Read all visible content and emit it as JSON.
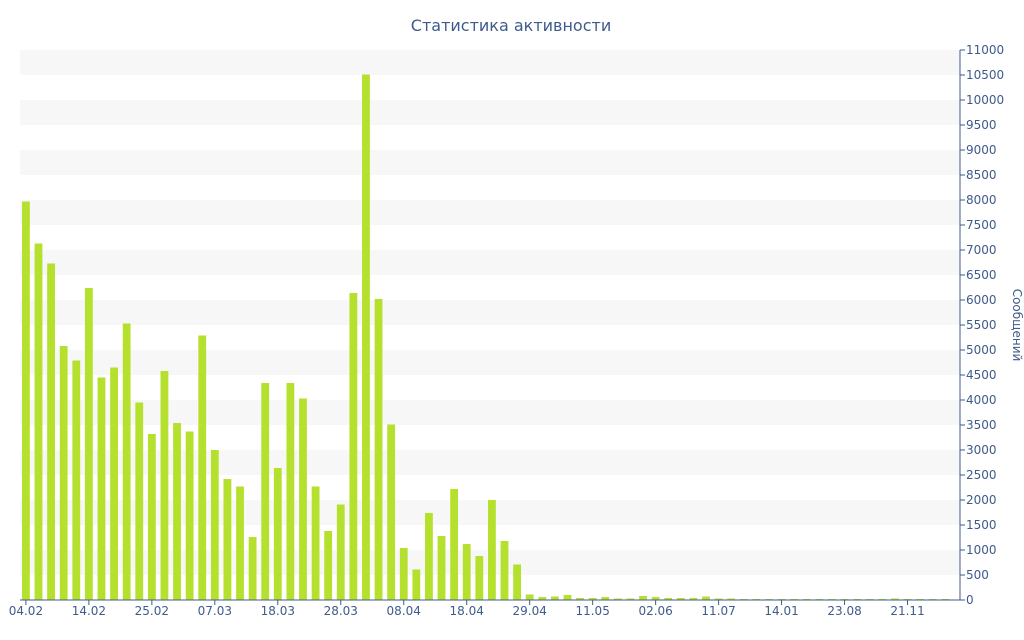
{
  "chart_data": {
    "type": "bar",
    "title": "Статистика активности",
    "xlabel": "",
    "ylabel": "Сообщений",
    "y_axis_side": "right",
    "ylim": [
      0,
      11000
    ],
    "y_ticks": [
      0,
      500,
      1000,
      1500,
      2000,
      2500,
      3000,
      3500,
      4000,
      4500,
      5000,
      5500,
      6000,
      6500,
      7000,
      7500,
      8000,
      8500,
      9000,
      9500,
      10000,
      10500,
      11000
    ],
    "x_tick_labels": [
      "04.02",
      "14.02",
      "25.02",
      "07.03",
      "18.03",
      "28.03",
      "08.04",
      "18.04",
      "29.04",
      "11.05",
      "02.06",
      "11.07",
      "14.01",
      "23.08",
      "21.11"
    ],
    "x_tick_bar_index": [
      0,
      5,
      10,
      15,
      20,
      25,
      30,
      35,
      40,
      45,
      50,
      55,
      60,
      65,
      70
    ],
    "grid": "horizontal bands",
    "colors": {
      "bar": "#b5e02e",
      "band": "#f7f7f7",
      "text": "#3e5b8a",
      "axis": "#3e5b8a"
    },
    "values": [
      7970,
      7130,
      6730,
      5080,
      4790,
      6240,
      4450,
      4650,
      5530,
      3950,
      3320,
      4580,
      3540,
      3370,
      5290,
      3000,
      2420,
      2270,
      1260,
      4340,
      2640,
      4340,
      4030,
      2270,
      1380,
      1910,
      6140,
      10510,
      6020,
      3510,
      1040,
      610,
      1740,
      1280,
      2220,
      1120,
      880,
      2000,
      1180,
      710,
      110,
      60,
      70,
      100,
      40,
      40,
      60,
      30,
      30,
      80,
      60,
      40,
      40,
      40,
      70,
      30,
      30,
      20,
      20,
      20,
      20,
      20,
      20,
      20,
      20,
      20,
      20,
      20,
      20,
      30,
      20,
      20,
      20,
      20
    ]
  }
}
